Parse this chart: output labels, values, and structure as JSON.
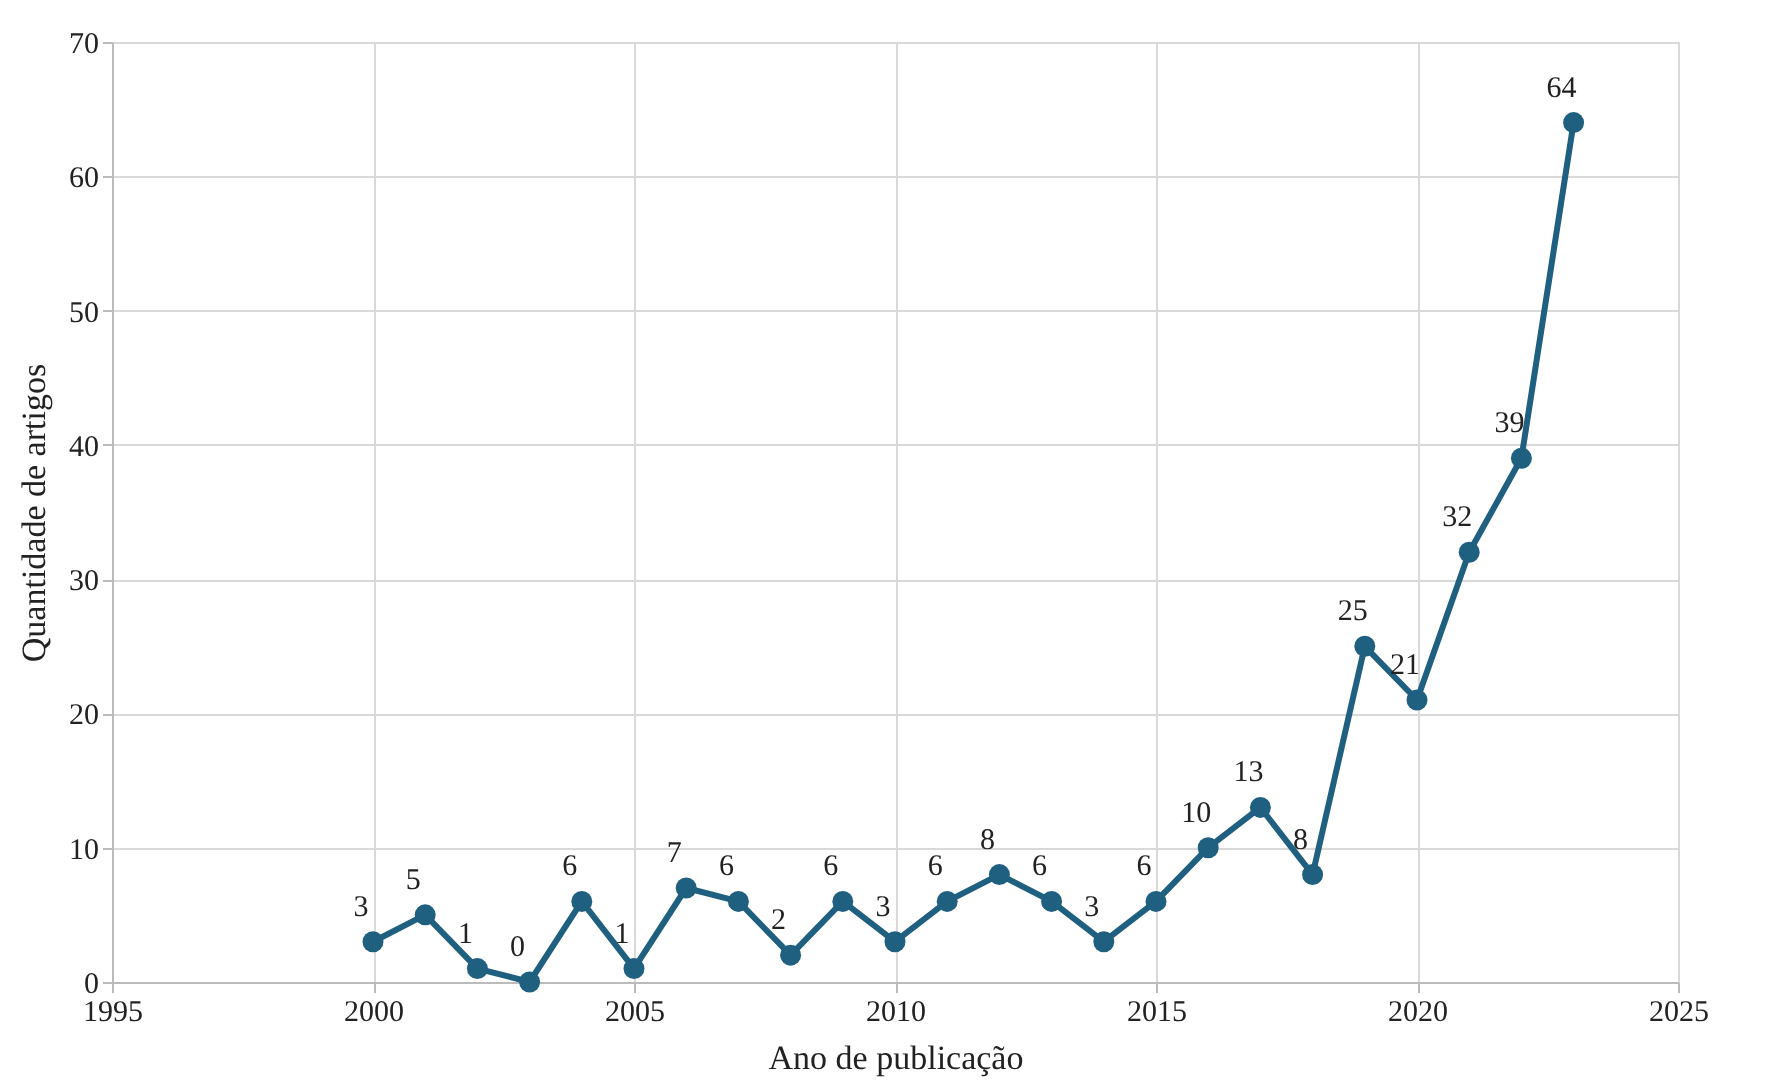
{
  "chart_data": {
    "type": "line",
    "xlabel": "Ano de publicação",
    "ylabel": "Quantidade de artigos",
    "x": [
      2000,
      2001,
      2002,
      2003,
      2004,
      2005,
      2006,
      2007,
      2008,
      2009,
      2010,
      2011,
      2012,
      2013,
      2014,
      2015,
      2016,
      2017,
      2018,
      2019,
      2020,
      2021,
      2022,
      2023
    ],
    "series": [
      {
        "color": "#1f5f7f",
        "values": [
          3,
          5,
          1,
          0,
          6,
          1,
          7,
          6,
          2,
          6,
          3,
          6,
          8,
          6,
          3,
          6,
          10,
          13,
          8,
          25,
          21,
          32,
          39,
          64
        ]
      }
    ],
    "xlim": [
      1995,
      2025
    ],
    "xticks": [
      1995,
      2000,
      2005,
      2010,
      2015,
      2020,
      2025
    ],
    "ylim": [
      0,
      70
    ],
    "yticks": [
      0,
      10,
      20,
      30,
      40,
      50,
      60,
      70
    ],
    "grid": true,
    "marker": "circle",
    "line_style": "solid",
    "data_labels": true
  }
}
